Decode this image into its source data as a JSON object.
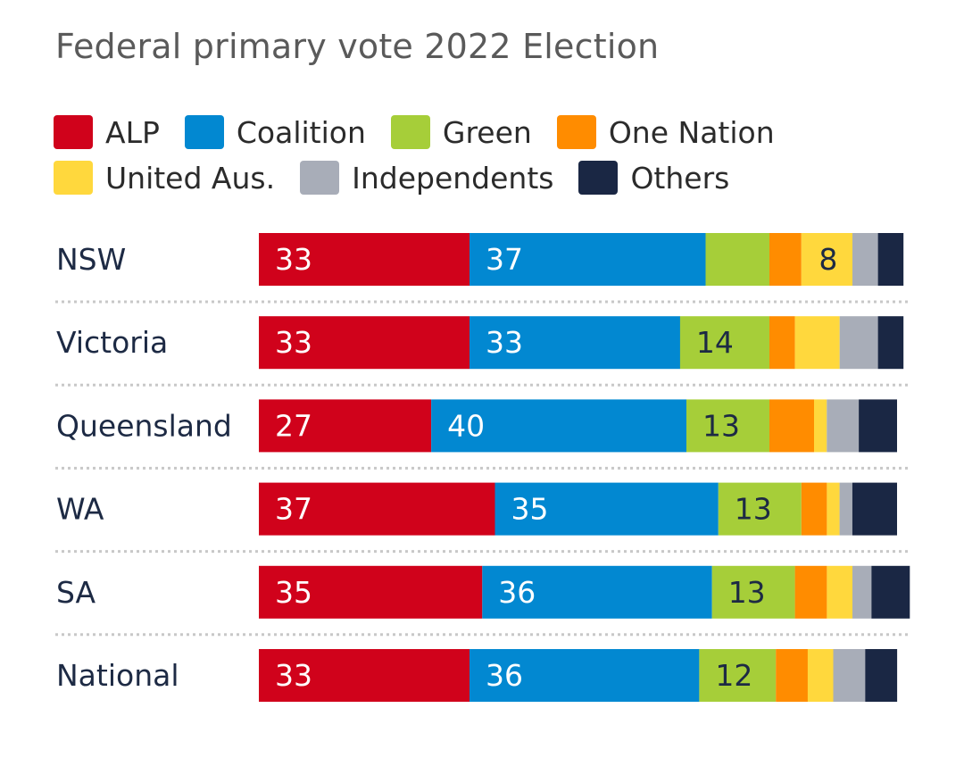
{
  "title": "Federal primary vote 2022 Election",
  "legend_rows": [
    [
      {
        "label": "ALP",
        "color": "#d0021b"
      },
      {
        "label": "Coalition",
        "color": "#0288d1"
      },
      {
        "label": "Green",
        "color": "#a6ce39"
      },
      {
        "label": "One Nation",
        "color": "#ff8c00"
      }
    ],
    [
      {
        "label": "United Aus.",
        "color": "#ffd83d"
      },
      {
        "label": "Independents",
        "color": "#a8adb8"
      },
      {
        "label": "Others",
        "color": "#1a2744"
      }
    ]
  ],
  "chart_data": {
    "type": "bar",
    "stacked": true,
    "orientation": "horizontal",
    "title": "Federal primary vote 2022 Election",
    "categories": [
      "NSW",
      "Victoria",
      "Queensland",
      "WA",
      "SA",
      "National"
    ],
    "series": [
      {
        "name": "ALP",
        "color": "#d0021b",
        "label_color": "#ffffff",
        "values": [
          33,
          33,
          27,
          37,
          35,
          33
        ],
        "labels": [
          "33",
          "33",
          "27",
          "37",
          "35",
          "33"
        ]
      },
      {
        "name": "Coalition",
        "color": "#0288d1",
        "label_color": "#ffffff",
        "values": [
          37,
          33,
          40,
          35,
          36,
          36
        ],
        "labels": [
          "37",
          "33",
          "40",
          "35",
          "36",
          "36"
        ]
      },
      {
        "name": "Green",
        "color": "#a6ce39",
        "label_color": "#1d2a44",
        "values": [
          10,
          14,
          13,
          13,
          13,
          12
        ],
        "labels": [
          "",
          "14",
          "13",
          "13",
          "13",
          "12"
        ]
      },
      {
        "name": "One Nation",
        "color": "#ff8c00",
        "label_color": "#1d2a44",
        "values": [
          5,
          4,
          7,
          4,
          5,
          5
        ],
        "labels": [
          "",
          "",
          "",
          "",
          "",
          ""
        ]
      },
      {
        "name": "United Aus.",
        "color": "#ffd83d",
        "label_color": "#1d2a44",
        "values": [
          8,
          7,
          2,
          2,
          4,
          4
        ],
        "labels": [
          "8",
          "",
          "",
          "",
          "",
          ""
        ]
      },
      {
        "name": "Independents",
        "color": "#a8adb8",
        "label_color": "#1d2a44",
        "values": [
          4,
          6,
          5,
          2,
          3,
          5
        ],
        "labels": [
          "",
          "",
          "",
          "",
          "",
          ""
        ]
      },
      {
        "name": "Others",
        "color": "#1a2744",
        "label_color": "#ffffff",
        "values": [
          4,
          4,
          6,
          7,
          6,
          5
        ],
        "labels": [
          "",
          "",
          "",
          "",
          "",
          ""
        ]
      }
    ],
    "xlim": [
      0,
      100
    ],
    "grid": false,
    "legend_position": "top"
  }
}
